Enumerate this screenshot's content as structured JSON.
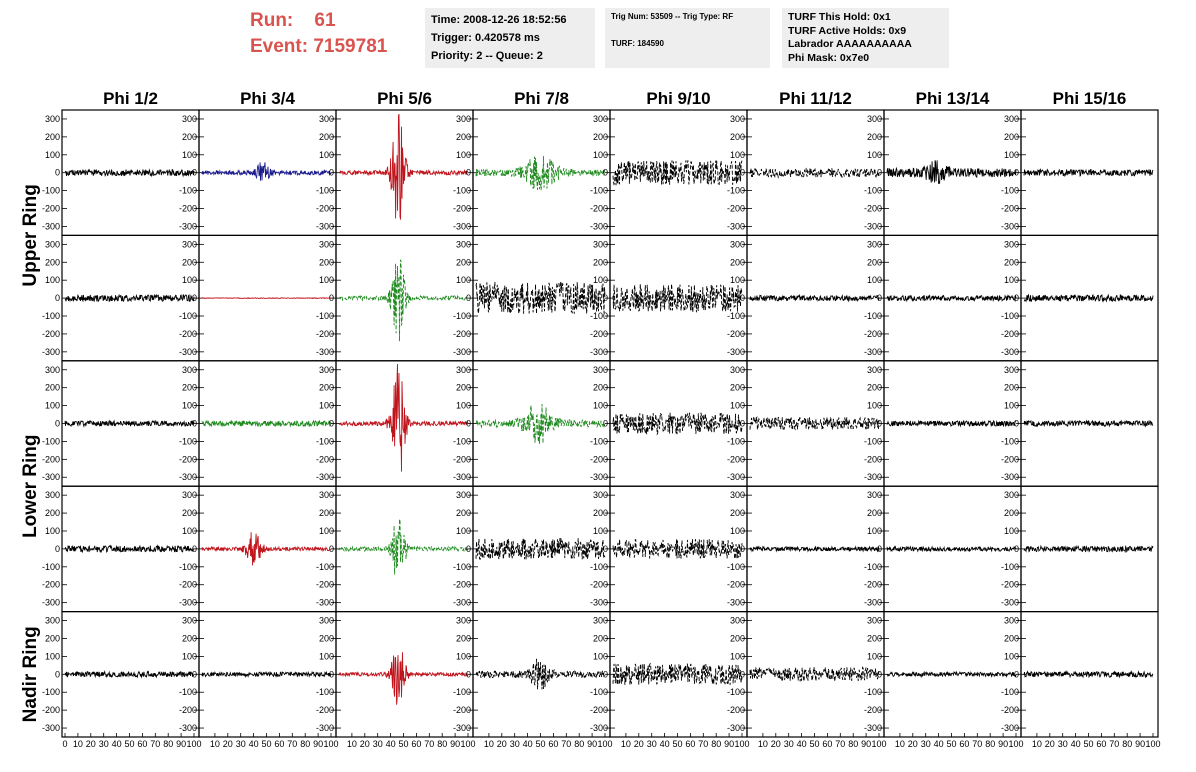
{
  "header": {
    "run_label": "Run:",
    "run_value": "61",
    "event_label": "Event:",
    "event_value": "7159781",
    "time_info": [
      "Time: 2008-12-26 18:52:56",
      "Trigger: 0.420578 ms",
      "Priority: 2 -- Queue: 2"
    ],
    "trig_info": [
      "Trig Num: 53509 -- Trig Type: RF",
      "TURF: 184590"
    ],
    "turf_info": [
      "TURF This Hold: 0x1",
      "TURF Active Holds: 0x9",
      "Labrador AAAAAAAAAA",
      "Phi Mask: 0x7e0"
    ],
    "colors": {
      "run_text": "#d9534f",
      "info_bg": "#eeeeee"
    }
  },
  "chart_data": {
    "type": "line",
    "columns": [
      "Phi 1/2",
      "Phi 3/4",
      "Phi 5/6",
      "Phi 7/8",
      "Phi 9/10",
      "Phi 11/12",
      "Phi 13/14",
      "Phi 15/16"
    ],
    "rows": [
      "Upper Ring",
      "Lower Ring",
      "Nadir Ring"
    ],
    "panel_rows": 5,
    "x_range": [
      0,
      100
    ],
    "y_range": [
      -350,
      350
    ],
    "y_ticks": [
      -300,
      -200,
      -100,
      0,
      100,
      200,
      300
    ],
    "x_tick_labels": [
      "0",
      "10",
      "20",
      "30",
      "40",
      "50",
      "60",
      "70",
      "80",
      "90",
      "100"
    ],
    "bottom_axis_text": "0 102030405060708090100",
    "colors": {
      "black": "#000000",
      "blue": "#1a1a8c",
      "red": "#c0141c",
      "green": "#1e8a1e"
    },
    "panels": [
      [
        {
          "color": "black",
          "style": "solid",
          "amp": 18,
          "peak": 0,
          "center": 0,
          "width": 0
        },
        {
          "color": "blue",
          "style": "solid",
          "amp": 12,
          "peak": 55,
          "center": 47,
          "width": 5
        },
        {
          "color": "red",
          "style": "solid",
          "amp": 12,
          "peak": 360,
          "center": 46,
          "width": 5
        },
        {
          "color": "green",
          "style": "dashed",
          "amp": 20,
          "peak": 90,
          "center": 50,
          "width": 12
        },
        {
          "color": "black",
          "style": "dashed",
          "amp": 70,
          "peak": 0,
          "center": 0,
          "width": 0
        },
        {
          "color": "black",
          "style": "dashed",
          "amp": 25,
          "peak": 0,
          "center": 0,
          "width": 0
        },
        {
          "color": "black",
          "style": "solid",
          "amp": 25,
          "peak": 45,
          "center": 38,
          "width": 8
        },
        {
          "color": "black",
          "style": "solid",
          "amp": 18,
          "peak": 0,
          "center": 0,
          "width": 0
        }
      ],
      [
        {
          "color": "black",
          "style": "solid",
          "amp": 18,
          "peak": 0,
          "center": 0,
          "width": 0
        },
        {
          "color": "red",
          "style": "solid",
          "amp": 2,
          "peak": 0,
          "center": 0,
          "width": 0
        },
        {
          "color": "green",
          "style": "dashed",
          "amp": 12,
          "peak": 240,
          "center": 46,
          "width": 5
        },
        {
          "color": "black",
          "style": "dashed",
          "amp": 90,
          "peak": 0,
          "center": 0,
          "width": 0
        },
        {
          "color": "black",
          "style": "dashed",
          "amp": 80,
          "peak": 0,
          "center": 0,
          "width": 0
        },
        {
          "color": "black",
          "style": "solid",
          "amp": 15,
          "peak": 0,
          "center": 0,
          "width": 0
        },
        {
          "color": "black",
          "style": "solid",
          "amp": 15,
          "peak": 0,
          "center": 0,
          "width": 0
        },
        {
          "color": "black",
          "style": "solid",
          "amp": 18,
          "peak": 0,
          "center": 0,
          "width": 0
        }
      ],
      [
        {
          "color": "black",
          "style": "solid",
          "amp": 15,
          "peak": 0,
          "center": 0,
          "width": 0
        },
        {
          "color": "green",
          "style": "solid",
          "amp": 15,
          "peak": 0,
          "center": 0,
          "width": 0
        },
        {
          "color": "red",
          "style": "solid",
          "amp": 12,
          "peak": 340,
          "center": 46,
          "width": 5
        },
        {
          "color": "green",
          "style": "dashed",
          "amp": 20,
          "peak": 110,
          "center": 48,
          "width": 10
        },
        {
          "color": "black",
          "style": "dashed",
          "amp": 60,
          "peak": 0,
          "center": 0,
          "width": 0
        },
        {
          "color": "black",
          "style": "dashed",
          "amp": 35,
          "peak": 0,
          "center": 0,
          "width": 0
        },
        {
          "color": "black",
          "style": "solid",
          "amp": 15,
          "peak": 0,
          "center": 0,
          "width": 0
        },
        {
          "color": "black",
          "style": "solid",
          "amp": 15,
          "peak": 0,
          "center": 0,
          "width": 0
        }
      ],
      [
        {
          "color": "black",
          "style": "solid",
          "amp": 18,
          "peak": 0,
          "center": 0,
          "width": 0
        },
        {
          "color": "red",
          "style": "solid",
          "amp": 10,
          "peak": 95,
          "center": 40,
          "width": 6
        },
        {
          "color": "green",
          "style": "dashed",
          "amp": 12,
          "peak": 200,
          "center": 46,
          "width": 5
        },
        {
          "color": "black",
          "style": "dashed",
          "amp": 60,
          "peak": 0,
          "center": 0,
          "width": 0
        },
        {
          "color": "black",
          "style": "dashed",
          "amp": 55,
          "peak": 0,
          "center": 0,
          "width": 0
        },
        {
          "color": "black",
          "style": "solid",
          "amp": 12,
          "peak": 0,
          "center": 0,
          "width": 0
        },
        {
          "color": "black",
          "style": "solid",
          "amp": 12,
          "peak": 0,
          "center": 0,
          "width": 0
        },
        {
          "color": "black",
          "style": "solid",
          "amp": 15,
          "peak": 0,
          "center": 0,
          "width": 0
        }
      ],
      [
        {
          "color": "black",
          "style": "solid",
          "amp": 15,
          "peak": 0,
          "center": 0,
          "width": 0
        },
        {
          "color": "black",
          "style": "solid",
          "amp": 12,
          "peak": 0,
          "center": 0,
          "width": 0
        },
        {
          "color": "red",
          "style": "solid",
          "amp": 10,
          "peak": 180,
          "center": 46,
          "width": 5
        },
        {
          "color": "black",
          "style": "dashed",
          "amp": 20,
          "peak": 110,
          "center": 50,
          "width": 6
        },
        {
          "color": "black",
          "style": "dashed",
          "amp": 60,
          "peak": 0,
          "center": 0,
          "width": 0
        },
        {
          "color": "black",
          "style": "dashed",
          "amp": 40,
          "peak": 0,
          "center": 0,
          "width": 0
        },
        {
          "color": "black",
          "style": "solid",
          "amp": 12,
          "peak": 0,
          "center": 0,
          "width": 0
        },
        {
          "color": "black",
          "style": "solid",
          "amp": 15,
          "peak": 0,
          "center": 0,
          "width": 0
        }
      ]
    ]
  }
}
